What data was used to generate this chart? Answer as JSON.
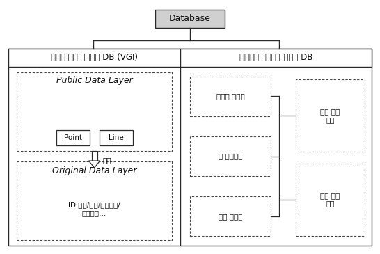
{
  "title": "Database",
  "left_box_title": "장애인 이동 지원시설 DB (VGI)",
  "right_box_title": "교통약자 유형별 경로안내 DB",
  "public_layer_label": "Public Data Layer",
  "point_label": "Point",
  "line_label": "Line",
  "verify_label": "검증",
  "original_layer_label": "Original Data Layer",
  "original_layer_sub1": "ID 보도/계단/횡단보도/",
  "original_layer_sub2": "지하보도…",
  "left_items": [
    "휠체어 이용자",
    "타 교통약자",
    "일반 보행자"
  ],
  "right_items_1": "최근 찾는\n경로",
  "right_items_2": "즐겨 찾는\n경로",
  "bg_color": "#ffffff",
  "box_edge_color": "#2a2a2a",
  "dashed_edge_color": "#555555",
  "title_box_fill": "#d0d0d0",
  "inner_box_fill": "#ffffff",
  "text_color": "#111111",
  "font_size_title": 9,
  "font_size_section": 8.5,
  "font_size_layer": 9,
  "font_size_small": 7.5,
  "fig_width": 5.46,
  "fig_height": 3.65,
  "dpi": 100
}
